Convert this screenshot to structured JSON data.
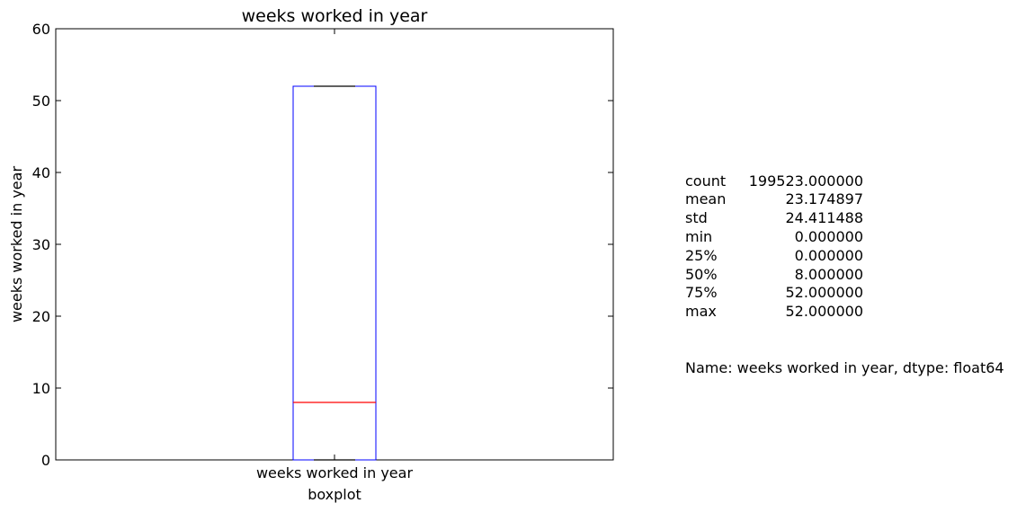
{
  "chart_data": {
    "type": "boxplot",
    "title": "weeks worked in year",
    "xlabel": "boxplot",
    "ylabel": "weeks worked in year",
    "categories": [
      "weeks worked in year"
    ],
    "ylim": [
      0,
      60
    ],
    "yticks": [
      "0",
      "10",
      "20",
      "30",
      "40",
      "50",
      "60"
    ],
    "box": {
      "whisker_low": 0,
      "q1": 0,
      "median": 8,
      "q3": 52,
      "whisker_high": 52
    },
    "colors": {
      "box": "#0000ff",
      "median": "#ff0000",
      "whisker_cap": "#000000",
      "frame": "#000000"
    },
    "grid": false
  },
  "summary": {
    "rows": [
      {
        "key": "count",
        "value": "199523.000000"
      },
      {
        "key": "mean",
        "value": "23.174897"
      },
      {
        "key": "std",
        "value": "24.411488"
      },
      {
        "key": "min",
        "value": "0.000000"
      },
      {
        "key": "25%",
        "value": "0.000000"
      },
      {
        "key": "50%",
        "value": "8.000000"
      },
      {
        "key": "75%",
        "value": "52.000000"
      },
      {
        "key": "max",
        "value": "52.000000"
      }
    ],
    "footer": "Name: weeks worked in year, dtype: float64"
  }
}
